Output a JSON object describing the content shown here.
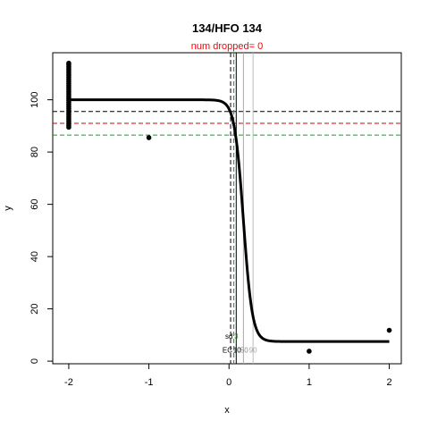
{
  "chart_data": {
    "type": "scatter",
    "title": "134/HFO 134",
    "subtitle": "num dropped= 0",
    "subtitle_color": "#ff0000",
    "xlabel": "x",
    "ylabel": "y",
    "xlim": [
      -2.2,
      2.15
    ],
    "ylim": [
      -1,
      118
    ],
    "x_ticks": [
      -2,
      -1,
      0,
      1,
      2
    ],
    "y_ticks": [
      0,
      20,
      40,
      60,
      80,
      100
    ],
    "grid": false,
    "points": [
      {
        "x": -2,
        "y": 89.5
      },
      {
        "x": -2,
        "y": 90.2
      },
      {
        "x": -2,
        "y": 91.0
      },
      {
        "x": -2,
        "y": 91.8
      },
      {
        "x": -2,
        "y": 92.6
      },
      {
        "x": -2,
        "y": 93.4
      },
      {
        "x": -2,
        "y": 94.2
      },
      {
        "x": -2,
        "y": 95.0
      },
      {
        "x": -2,
        "y": 95.8
      },
      {
        "x": -2,
        "y": 96.6
      },
      {
        "x": -2,
        "y": 97.4
      },
      {
        "x": -2,
        "y": 98.2
      },
      {
        "x": -2,
        "y": 99.0
      },
      {
        "x": -2,
        "y": 99.8
      },
      {
        "x": -2,
        "y": 100.6
      },
      {
        "x": -2,
        "y": 101.4
      },
      {
        "x": -2,
        "y": 102.2
      },
      {
        "x": -2,
        "y": 103.0
      },
      {
        "x": -2,
        "y": 103.8
      },
      {
        "x": -2,
        "y": 104.6
      },
      {
        "x": -2,
        "y": 105.4
      },
      {
        "x": -2,
        "y": 106.2
      },
      {
        "x": -2,
        "y": 107.0
      },
      {
        "x": -2,
        "y": 107.8
      },
      {
        "x": -2,
        "y": 108.6
      },
      {
        "x": -2,
        "y": 109.4
      },
      {
        "x": -2,
        "y": 110.2
      },
      {
        "x": -2,
        "y": 111.0
      },
      {
        "x": -2,
        "y": 111.8
      },
      {
        "x": -2,
        "y": 112.6
      },
      {
        "x": -2,
        "y": 113.4
      },
      {
        "x": -2,
        "y": 114.0
      },
      {
        "x": -1,
        "y": 85.5
      },
      {
        "x": 1,
        "y": 3.8
      },
      {
        "x": 2,
        "y": 11.8
      }
    ],
    "fit_curve": {
      "model": "four-parameter logistic",
      "top": 100,
      "bottom": 7.5,
      "x_from": -2,
      "x_to": 2,
      "midpoint_x": 0.18,
      "slope": 18,
      "color": "#000000"
    },
    "horizontal_lines": [
      {
        "y": 95.5,
        "color": "#000000",
        "style": "dashed"
      },
      {
        "y": 91.0,
        "color": "#dd0000",
        "style": "dashed"
      },
      {
        "y": 86.5,
        "color": "#00aa00",
        "style": "dashed"
      }
    ],
    "vertical_lines": [
      {
        "x": 0.02,
        "color": "#000000",
        "style": "dashed"
      },
      {
        "x": 0.06,
        "color": "#00aa00",
        "style": "dashed"
      },
      {
        "x": 0.09,
        "color": "#000000",
        "style": "solid"
      },
      {
        "x": 0.18,
        "color": "#aaaaaa",
        "style": "solid"
      },
      {
        "x": 0.3,
        "color": "#bbbbbb",
        "style": "solid"
      }
    ],
    "annotations": [
      {
        "text": "sd",
        "x": 0.0,
        "y": 8.5,
        "color": "#000000"
      },
      {
        "text": "3",
        "x": 0.09,
        "y": 8.5,
        "color": "#00aa00"
      },
      {
        "text": "EC",
        "x": -0.02,
        "y": 3.2,
        "color": "#000000"
      },
      {
        "text": "10",
        "x": 0.1,
        "y": 3.2,
        "color": "#000000"
      },
      {
        "text": "50",
        "x": 0.19,
        "y": 3.2,
        "color": "#888888"
      },
      {
        "text": "90",
        "x": 0.3,
        "y": 3.2,
        "color": "#aaaaaa"
      }
    ]
  }
}
